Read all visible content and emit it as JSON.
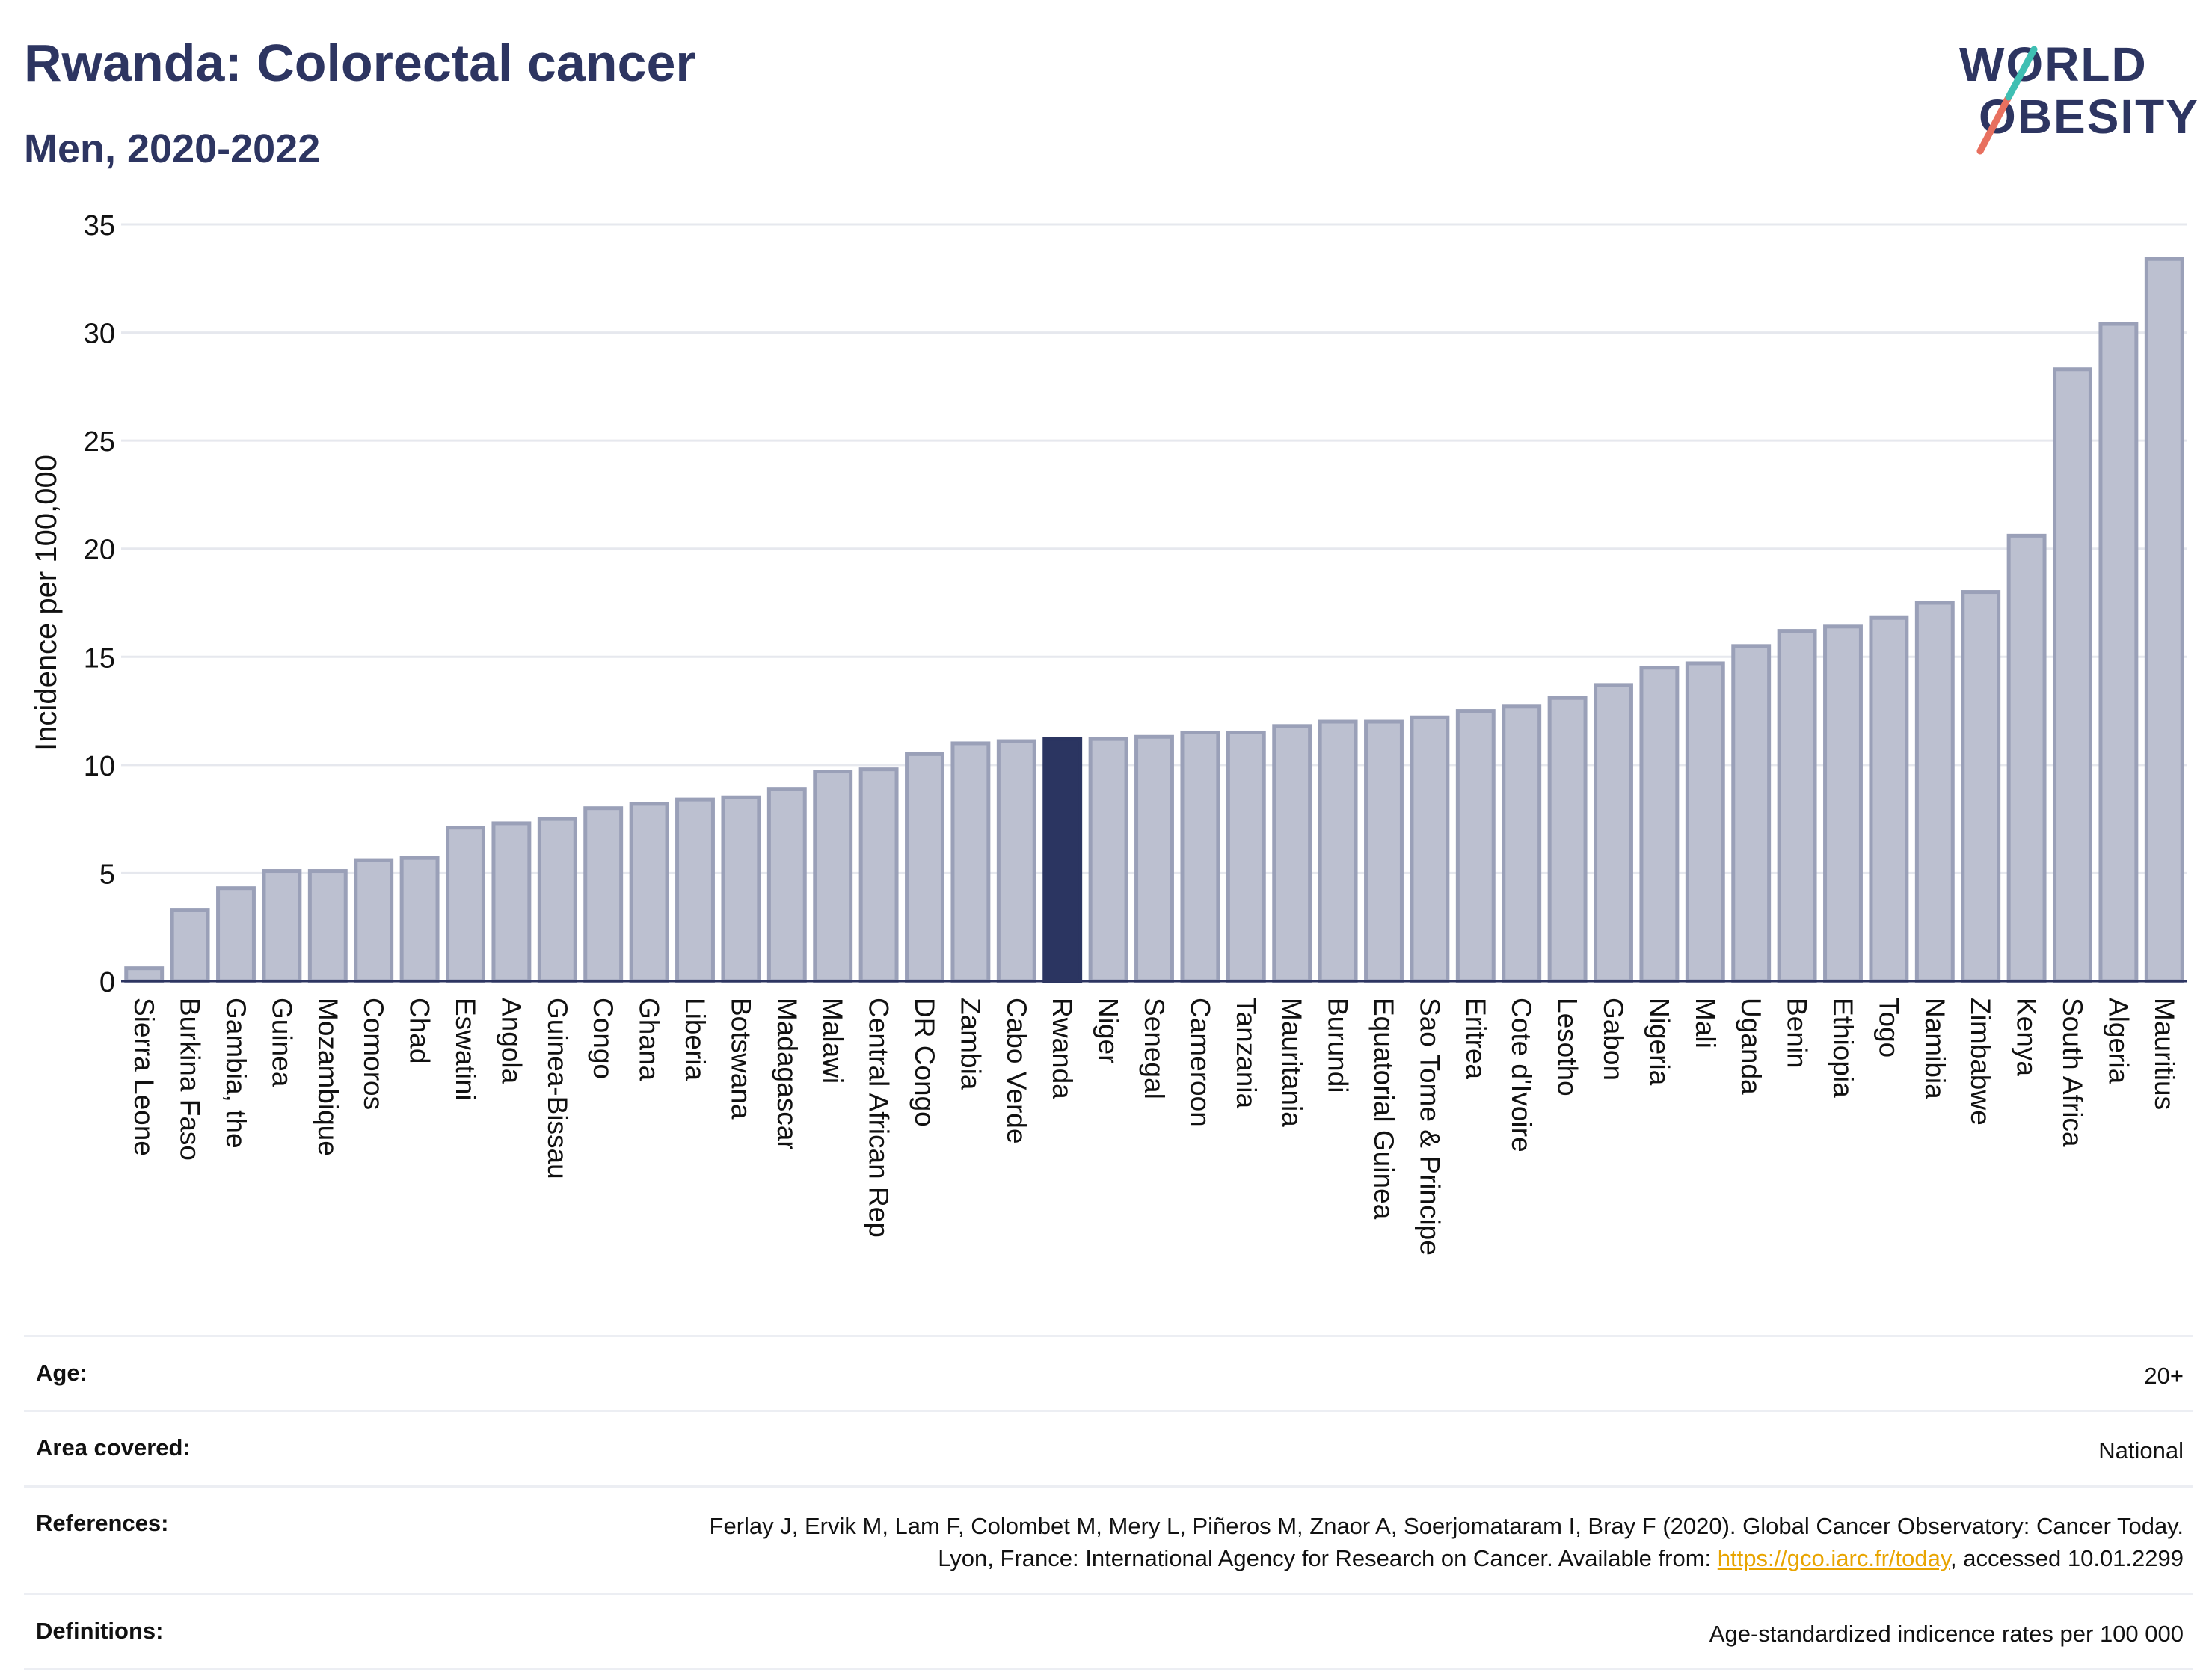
{
  "header": {
    "title": "Rwanda: Colorectal cancer",
    "subtitle": "Men, 2020-2022"
  },
  "logo": {
    "line1": "WORLD",
    "line2": "OBESITY"
  },
  "colors": {
    "bar": "#bcc0d0",
    "bar_stroke": "#9aa0b8",
    "highlight": "#2b3561",
    "title": "#2d3561",
    "link": "#e8a400",
    "logo_teal": "#3fbfb3",
    "logo_coral": "#e8705f"
  },
  "chart_data": {
    "type": "bar",
    "title": "Rwanda: Colorectal cancer",
    "subtitle": "Men, 2020-2022",
    "xlabel": "",
    "ylabel": "Incidence per 100,000",
    "ylim": [
      0,
      35
    ],
    "yticks": [
      0,
      5,
      10,
      15,
      20,
      25,
      30,
      35
    ],
    "grid": true,
    "highlight": "Rwanda",
    "categories": [
      "Sierra Leone",
      "Burkina Faso",
      "Gambia, the",
      "Guinea",
      "Mozambique",
      "Comoros",
      "Chad",
      "Eswatini",
      "Angola",
      "Guinea-Bissau",
      "Congo",
      "Ghana",
      "Liberia",
      "Botswana",
      "Madagascar",
      "Malawi",
      "Central African Rep",
      "DR Congo",
      "Zambia",
      "Cabo Verde",
      "Rwanda",
      "Niger",
      "Senegal",
      "Cameroon",
      "Tanzania",
      "Mauritania",
      "Burundi",
      "Equatorial Guinea",
      "Sao Tome & Principe",
      "Eritrea",
      "Cote d'Ivoire",
      "Lesotho",
      "Gabon",
      "Nigeria",
      "Mali",
      "Uganda",
      "Benin",
      "Ethiopia",
      "Togo",
      "Namibia",
      "Zimbabwe",
      "Kenya",
      "South Africa",
      "Algeria",
      "Mauritius"
    ],
    "values": [
      0.6,
      3.3,
      4.3,
      5.1,
      5.1,
      5.6,
      5.7,
      7.1,
      7.3,
      7.5,
      8.0,
      8.2,
      8.4,
      8.5,
      8.9,
      9.7,
      9.8,
      10.5,
      11.0,
      11.1,
      11.2,
      11.2,
      11.3,
      11.5,
      11.5,
      11.8,
      12.0,
      12.0,
      12.2,
      12.5,
      12.7,
      13.1,
      13.7,
      14.5,
      14.7,
      15.5,
      16.2,
      16.4,
      16.8,
      17.5,
      18.0,
      20.6,
      28.3,
      30.4,
      33.4
    ]
  },
  "info": {
    "age_label": "Age:",
    "age_value": "20+",
    "area_label": "Area covered:",
    "area_value": "National",
    "refs_label": "References:",
    "refs_text_1": "Ferlay J, Ervik M, Lam F, Colombet M, Mery L, Piñeros M, Znaor A, Soerjomataram I, Bray F (2020). Global Cancer Observatory: Cancer Today. Lyon, France: International Agency for Research on Cancer. Available from: ",
    "refs_link": "https://gco.iarc.fr/today",
    "refs_text_2": ", accessed 10.01.2299",
    "defs_label": "Definitions:",
    "defs_value": "Age-standardized indicence rates per 100 000"
  }
}
